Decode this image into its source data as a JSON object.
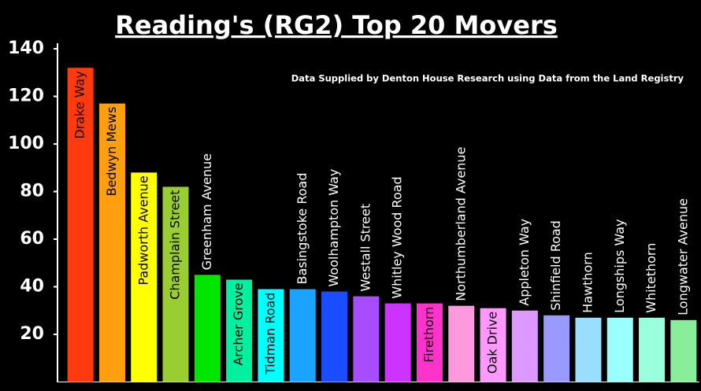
{
  "chart_data": {
    "type": "bar",
    "title": "Reading's (RG2) Top 20 Movers",
    "subtitle": "Data Supplied by Denton House Research using Data from the Land Registry",
    "categories": [
      "Drake Way",
      "Bedwyn Mews",
      "Padworth Avenue",
      "Champlain Street",
      "Greenham Avenue",
      "Archer Grove",
      "Tidman Road",
      "Basingstoke Road",
      "Woolhampton Way",
      "Westall Street",
      "Whitley Wood Road",
      "Firethorn",
      "Northumberland Avenue",
      "Oak Drive",
      "Appleton Way",
      "Shinfield Road",
      "Hawthorn",
      "Longships Way",
      "Whitethorn",
      "Longwater Avenue"
    ],
    "values": [
      132,
      117,
      88,
      82,
      45,
      43,
      39,
      39,
      38,
      36,
      33,
      33,
      32,
      31,
      30,
      28,
      27,
      27,
      27,
      26
    ],
    "colors": [
      "#ff3a0f",
      "#ff9f0f",
      "#ffff00",
      "#9acd32",
      "#00e600",
      "#00f0a0",
      "#00ffff",
      "#1aa3ff",
      "#1a4dff",
      "#a64dff",
      "#cc33ff",
      "#ff33cc",
      "#ff99dd",
      "#ff99ff",
      "#dd99ff",
      "#9999ff",
      "#99ddff",
      "#99ffff",
      "#99ffdd",
      "#88ee99"
    ],
    "ylim": [
      0,
      140
    ],
    "yticks": [
      20,
      40,
      60,
      80,
      100,
      120,
      140
    ]
  }
}
